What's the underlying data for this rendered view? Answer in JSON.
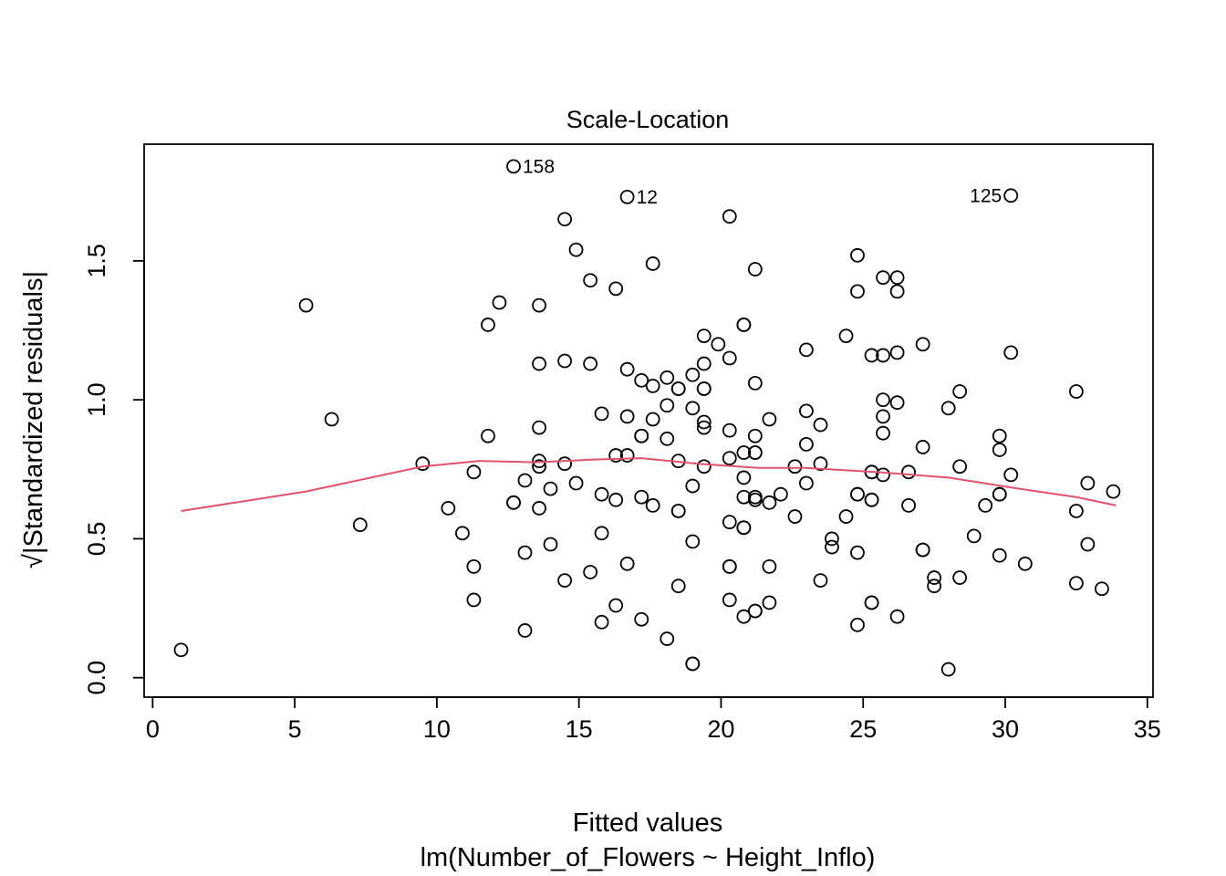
{
  "chart_data": {
    "type": "scatter",
    "title": "Scale-Location",
    "xlabel": "Fitted values",
    "subtitle": "lm(Number_of_Flowers ~ Height_Inflo)",
    "ylabel": "√|Standardized residuals|",
    "xlim": [
      -0.3,
      35.2
    ],
    "ylim": [
      -0.07,
      1.92
    ],
    "xticks": [
      "0",
      "5",
      "10",
      "15",
      "20",
      "25",
      "30",
      "35"
    ],
    "yticks": [
      "0.0",
      "0.5",
      "1.0",
      "1.5"
    ],
    "grid": false,
    "smoother_color": "#DF536B",
    "smoother": [
      [
        1.0,
        0.6
      ],
      [
        5.4,
        0.67
      ],
      [
        9.5,
        0.76
      ],
      [
        11.5,
        0.78
      ],
      [
        13.5,
        0.775
      ],
      [
        15.5,
        0.785
      ],
      [
        17.2,
        0.79
      ],
      [
        19.2,
        0.77
      ],
      [
        21.3,
        0.755
      ],
      [
        23.0,
        0.755
      ],
      [
        25.5,
        0.74
      ],
      [
        28.0,
        0.72
      ],
      [
        30.5,
        0.68
      ],
      [
        32.5,
        0.65
      ],
      [
        33.9,
        0.62
      ]
    ],
    "labeled_points": [
      {
        "x": 12.7,
        "y": 1.84,
        "label": "158",
        "side": "right"
      },
      {
        "x": 16.7,
        "y": 1.73,
        "label": "12",
        "side": "right"
      },
      {
        "x": 30.2,
        "y": 1.735,
        "label": "125",
        "side": "left"
      }
    ],
    "points": [
      [
        1.0,
        0.1
      ],
      [
        5.4,
        1.34
      ],
      [
        6.3,
        0.93
      ],
      [
        7.3,
        0.55
      ],
      [
        9.5,
        0.77
      ],
      [
        10.4,
        0.61
      ],
      [
        10.9,
        0.52
      ],
      [
        11.3,
        0.74
      ],
      [
        11.3,
        0.4
      ],
      [
        11.3,
        0.28
      ],
      [
        11.8,
        1.27
      ],
      [
        11.8,
        0.87
      ],
      [
        12.2,
        1.35
      ],
      [
        12.7,
        0.63
      ],
      [
        12.7,
        0.63
      ],
      [
        13.1,
        0.71
      ],
      [
        13.1,
        0.45
      ],
      [
        13.1,
        0.17
      ],
      [
        13.6,
        1.34
      ],
      [
        13.6,
        1.13
      ],
      [
        13.6,
        0.9
      ],
      [
        13.6,
        0.78
      ],
      [
        13.6,
        0.76
      ],
      [
        13.6,
        0.61
      ],
      [
        14.0,
        0.68
      ],
      [
        14.0,
        0.48
      ],
      [
        14.5,
        1.65
      ],
      [
        14.5,
        1.14
      ],
      [
        14.5,
        0.77
      ],
      [
        14.5,
        0.35
      ],
      [
        14.9,
        1.54
      ],
      [
        14.9,
        0.7
      ],
      [
        15.4,
        1.43
      ],
      [
        15.4,
        1.13
      ],
      [
        15.4,
        0.38
      ],
      [
        15.8,
        0.95
      ],
      [
        15.8,
        0.66
      ],
      [
        15.8,
        0.52
      ],
      [
        15.8,
        0.2
      ],
      [
        16.3,
        1.4
      ],
      [
        16.3,
        0.8
      ],
      [
        16.3,
        0.64
      ],
      [
        16.3,
        0.26
      ],
      [
        16.7,
        1.11
      ],
      [
        16.7,
        0.94
      ],
      [
        16.7,
        0.8
      ],
      [
        16.7,
        0.41
      ],
      [
        17.2,
        1.07
      ],
      [
        17.2,
        0.87
      ],
      [
        17.2,
        0.87
      ],
      [
        17.2,
        0.65
      ],
      [
        17.2,
        0.21
      ],
      [
        17.6,
        1.49
      ],
      [
        17.6,
        1.05
      ],
      [
        17.6,
        0.93
      ],
      [
        17.6,
        0.62
      ],
      [
        18.1,
        1.08
      ],
      [
        18.1,
        0.98
      ],
      [
        18.1,
        0.86
      ],
      [
        18.1,
        0.14
      ],
      [
        18.5,
        1.04
      ],
      [
        18.5,
        1.04
      ],
      [
        18.5,
        0.78
      ],
      [
        18.5,
        0.6
      ],
      [
        18.5,
        0.6
      ],
      [
        18.5,
        0.33
      ],
      [
        19.0,
        1.09
      ],
      [
        19.0,
        0.97
      ],
      [
        19.0,
        0.69
      ],
      [
        19.0,
        0.49
      ],
      [
        19.0,
        0.05
      ],
      [
        19.0,
        0.05
      ],
      [
        19.4,
        1.23
      ],
      [
        19.4,
        1.13
      ],
      [
        19.4,
        1.04
      ],
      [
        19.4,
        1.04
      ],
      [
        19.4,
        0.92
      ],
      [
        19.4,
        0.9
      ],
      [
        19.4,
        0.76
      ],
      [
        19.9,
        1.2
      ],
      [
        20.3,
        1.66
      ],
      [
        20.3,
        1.15
      ],
      [
        20.3,
        0.89
      ],
      [
        20.3,
        0.79
      ],
      [
        20.3,
        0.56
      ],
      [
        20.3,
        0.4
      ],
      [
        20.3,
        0.4
      ],
      [
        20.3,
        0.28
      ],
      [
        20.8,
        1.27
      ],
      [
        20.8,
        1.27
      ],
      [
        20.8,
        0.81
      ],
      [
        20.8,
        0.72
      ],
      [
        20.8,
        0.65
      ],
      [
        20.8,
        0.54
      ],
      [
        20.8,
        0.54
      ],
      [
        20.8,
        0.22
      ],
      [
        21.2,
        1.47
      ],
      [
        21.2,
        1.06
      ],
      [
        21.2,
        0.87
      ],
      [
        21.2,
        0.81
      ],
      [
        21.2,
        0.81
      ],
      [
        21.2,
        0.65
      ],
      [
        21.2,
        0.64
      ],
      [
        21.2,
        0.24
      ],
      [
        21.2,
        0.24
      ],
      [
        21.7,
        0.93
      ],
      [
        21.7,
        0.63
      ],
      [
        21.7,
        0.4
      ],
      [
        21.7,
        0.27
      ],
      [
        22.1,
        0.66
      ],
      [
        22.6,
        0.76
      ],
      [
        22.6,
        0.58
      ],
      [
        23.0,
        1.18
      ],
      [
        23.0,
        0.96
      ],
      [
        23.0,
        0.84
      ],
      [
        23.0,
        0.7
      ],
      [
        23.5,
        0.91
      ],
      [
        23.5,
        0.77
      ],
      [
        23.5,
        0.35
      ],
      [
        23.9,
        0.5
      ],
      [
        23.9,
        0.47
      ],
      [
        24.4,
        1.23
      ],
      [
        24.4,
        0.58
      ],
      [
        24.8,
        1.52
      ],
      [
        24.8,
        1.39
      ],
      [
        24.8,
        0.66
      ],
      [
        24.8,
        0.66
      ],
      [
        24.8,
        0.45
      ],
      [
        24.8,
        0.19
      ],
      [
        25.3,
        1.16
      ],
      [
        25.3,
        0.74
      ],
      [
        25.3,
        0.74
      ],
      [
        25.3,
        0.64
      ],
      [
        25.3,
        0.64
      ],
      [
        25.3,
        0.27
      ],
      [
        25.3,
        0.27
      ],
      [
        25.7,
        1.44
      ],
      [
        25.7,
        1.16
      ],
      [
        25.7,
        1.0
      ],
      [
        25.7,
        0.94
      ],
      [
        25.7,
        0.88
      ],
      [
        25.7,
        0.73
      ],
      [
        26.2,
        1.44
      ],
      [
        26.2,
        1.39
      ],
      [
        26.2,
        1.17
      ],
      [
        26.2,
        0.99
      ],
      [
        26.2,
        0.22
      ],
      [
        26.6,
        0.74
      ],
      [
        26.6,
        0.62
      ],
      [
        27.1,
        1.2
      ],
      [
        27.1,
        0.83
      ],
      [
        27.1,
        0.46
      ],
      [
        27.1,
        0.46
      ],
      [
        27.5,
        0.36
      ],
      [
        27.5,
        0.33
      ],
      [
        28.0,
        0.97
      ],
      [
        28.0,
        0.03
      ],
      [
        28.4,
        1.03
      ],
      [
        28.4,
        0.76
      ],
      [
        28.4,
        0.36
      ],
      [
        28.9,
        0.51
      ],
      [
        29.3,
        0.62
      ],
      [
        29.8,
        0.87
      ],
      [
        29.8,
        0.82
      ],
      [
        29.8,
        0.66
      ],
      [
        29.8,
        0.66
      ],
      [
        29.8,
        0.44
      ],
      [
        30.2,
        1.17
      ],
      [
        30.2,
        0.73
      ],
      [
        30.7,
        0.41
      ],
      [
        32.5,
        1.03
      ],
      [
        32.5,
        0.6
      ],
      [
        32.5,
        0.34
      ],
      [
        32.9,
        0.7
      ],
      [
        32.9,
        0.48
      ],
      [
        33.4,
        0.32
      ],
      [
        33.8,
        0.67
      ]
    ]
  }
}
